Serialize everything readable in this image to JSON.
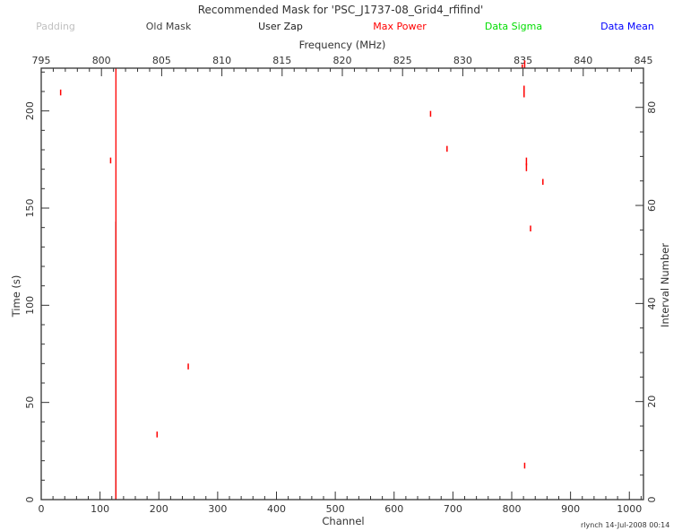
{
  "chart_data": {
    "type": "scatter",
    "title": "Recommended Mask for 'PSC_J1737-08_Grid4_rfifind'",
    "legend": [
      {
        "name": "Padding",
        "color": "#c0c0c0"
      },
      {
        "name": "Old Mask",
        "color": "#404040"
      },
      {
        "name": "User Zap",
        "color": "#202020"
      },
      {
        "name": "Max Power",
        "color": "#ff0000"
      },
      {
        "name": "Data Sigma",
        "color": "#00dd00"
      },
      {
        "name": "Data Mean",
        "color": "#0000ff"
      }
    ],
    "legend_placement": "top",
    "xlabel": "Channel",
    "ylabel": "Time (s)",
    "x2label": "Frequency (MHz)",
    "y2label": "Interval Number",
    "xlim": [
      0,
      1024
    ],
    "ylim": [
      0,
      222
    ],
    "x2lim": [
      795,
      845
    ],
    "y2lim": [
      0,
      88
    ],
    "x_ticks": [
      0,
      100,
      200,
      300,
      400,
      500,
      600,
      700,
      800,
      900,
      1000
    ],
    "y_ticks": [
      0,
      50,
      100,
      150,
      200
    ],
    "x2_ticks": [
      795,
      800,
      805,
      810,
      815,
      820,
      825,
      830,
      835,
      840,
      845
    ],
    "y2_ticks": [
      0,
      20,
      40,
      60,
      80
    ],
    "user_zap": {
      "name": "User Zap",
      "color": "#202020",
      "channel": 127,
      "time_range": [
        0,
        143
      ]
    },
    "series": [
      {
        "name": "Max Power",
        "color": "#ff0000",
        "points": [
          {
            "channel": 127,
            "t0": 0,
            "t1": 222
          },
          {
            "channel": 33,
            "t0": 208,
            "t1": 211
          },
          {
            "channel": 118,
            "t0": 173,
            "t1": 176
          },
          {
            "channel": 197,
            "t0": 32,
            "t1": 35
          },
          {
            "channel": 250,
            "t0": 67,
            "t1": 70
          },
          {
            "channel": 662,
            "t0": 197,
            "t1": 200
          },
          {
            "channel": 690,
            "t0": 179,
            "t1": 182
          },
          {
            "channel": 818,
            "t0": 224,
            "t1": 228
          },
          {
            "channel": 822,
            "t0": 226,
            "t1": 228
          },
          {
            "channel": 821,
            "t0": 207,
            "t1": 213
          },
          {
            "channel": 825,
            "t0": 169,
            "t1": 173
          },
          {
            "channel": 825,
            "t0": 172,
            "t1": 176
          },
          {
            "channel": 853,
            "t0": 162,
            "t1": 165
          },
          {
            "channel": 832,
            "t0": 138,
            "t1": 141
          },
          {
            "channel": 822,
            "t0": 16,
            "t1": 19
          }
        ]
      }
    ],
    "footer": "rlynch 14-Jul-2008 00:14"
  }
}
